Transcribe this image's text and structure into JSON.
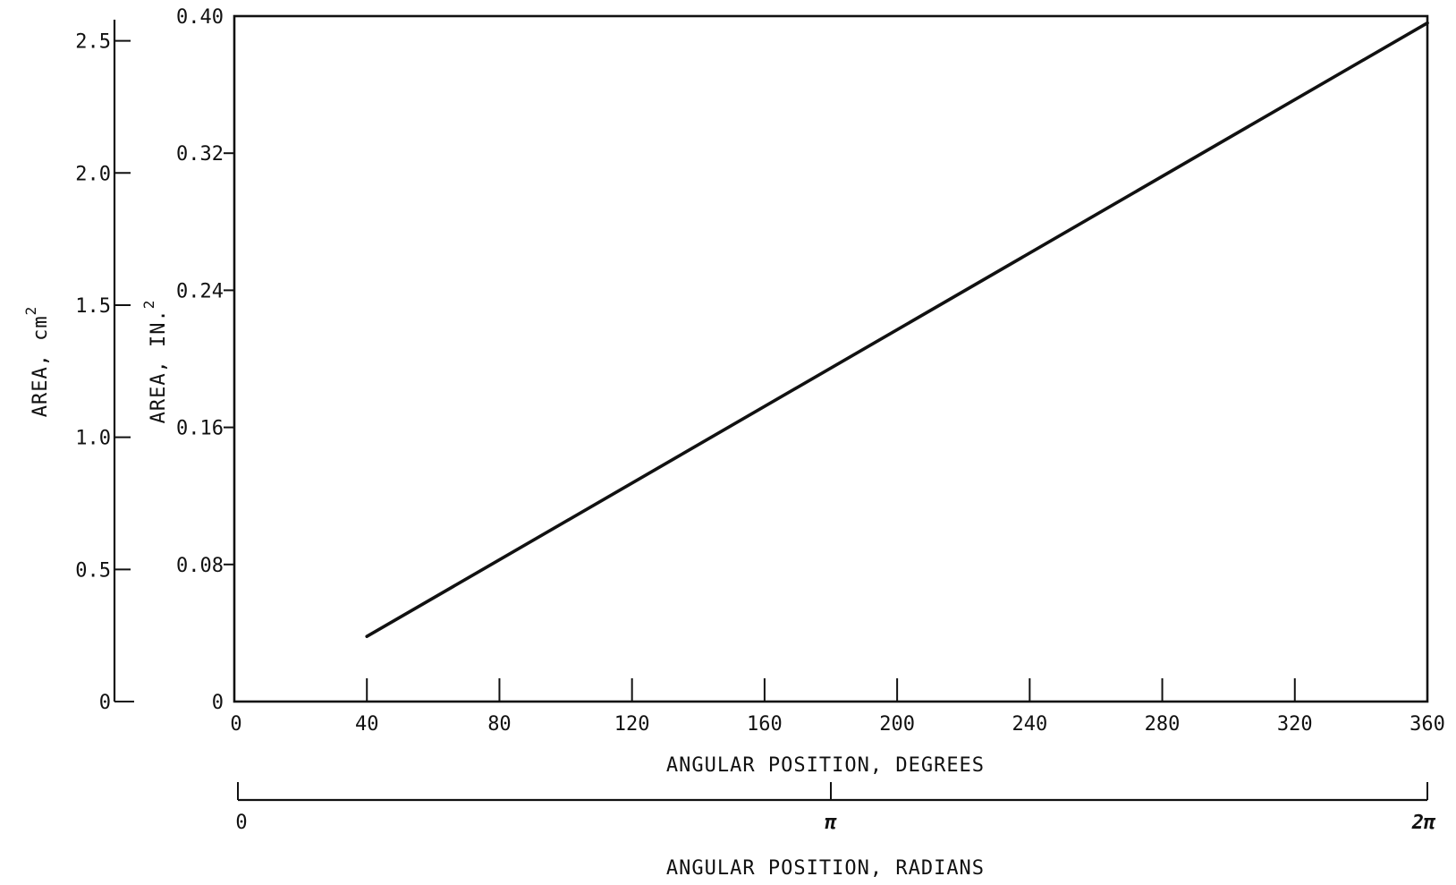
{
  "chart_data": {
    "type": "line",
    "title": "",
    "x": {
      "label": "ANGULAR POSITION, DEGREES",
      "range": [
        0,
        360
      ],
      "ticks": [
        0,
        40,
        80,
        120,
        160,
        200,
        240,
        280,
        320,
        360
      ],
      "tick_labels": [
        "0",
        "40",
        "80",
        "120",
        "160",
        "200",
        "240",
        "280",
        "320",
        "360"
      ]
    },
    "x_secondary": {
      "label": "ANGULAR POSITION, RADIANS",
      "ticks_degrees": [
        0,
        180,
        360
      ],
      "tick_labels": [
        "0",
        "π",
        "2π"
      ]
    },
    "y": {
      "label": "AREA, IN.",
      "label_superscript": "2",
      "range": [
        0,
        0.4
      ],
      "ticks": [
        0,
        0.08,
        0.16,
        0.24,
        0.32,
        0.4
      ],
      "tick_labels": [
        "0",
        "0.08",
        "0.16",
        "0.24",
        "0.32",
        "0.40"
      ]
    },
    "y_secondary": {
      "label": "AREA, cm",
      "label_superscript": "2",
      "range": [
        0,
        2.58
      ],
      "ticks": [
        0,
        0.5,
        1.0,
        1.5,
        2.0,
        2.5
      ],
      "tick_labels": [
        "0",
        "0.5",
        "1.0",
        "1.5",
        "2.0",
        "2.5"
      ]
    },
    "series": [
      {
        "x": [
          40,
          360
        ],
        "y": [
          0.038,
          0.396
        ]
      }
    ],
    "grid": false,
    "legend": "none"
  }
}
